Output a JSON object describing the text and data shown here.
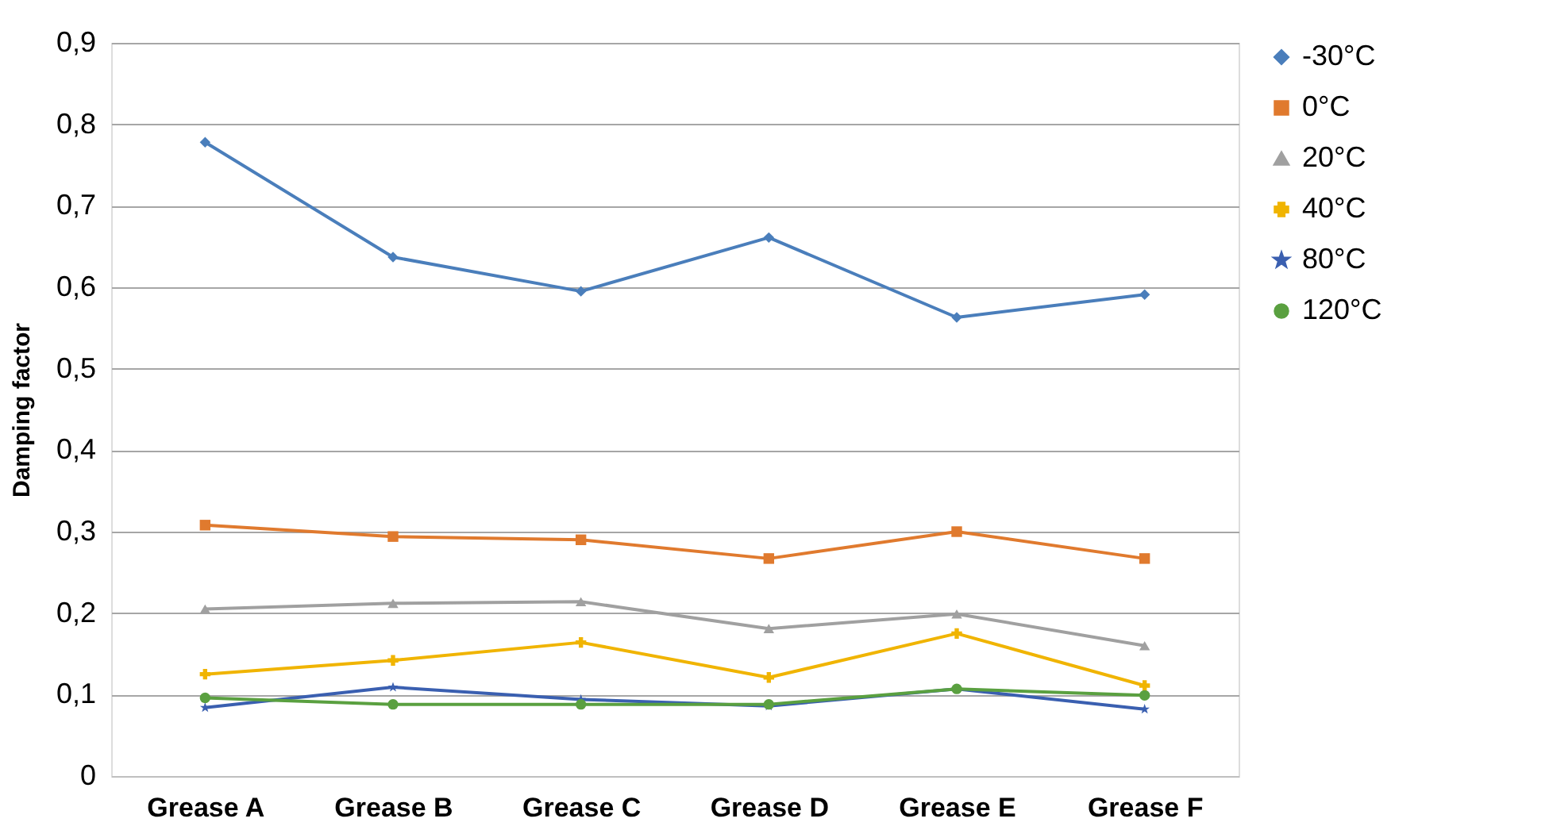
{
  "chart_data": {
    "type": "line",
    "ylabel": "Damping factor",
    "categories": [
      "Grease A",
      "Grease B",
      "Grease C",
      "Grease D",
      "Grease E",
      "Grease F"
    ],
    "series": [
      {
        "name": "-30°C",
        "color": "#4a7ebb",
        "marker": "diamond",
        "values": [
          0.778,
          0.637,
          0.595,
          0.661,
          0.563,
          0.591
        ]
      },
      {
        "name": "0°C",
        "color": "#e07a2e",
        "marker": "square",
        "values": [
          0.308,
          0.294,
          0.29,
          0.267,
          0.3,
          0.267
        ]
      },
      {
        "name": "20°C",
        "color": "#a0a0a0",
        "marker": "triangle",
        "values": [
          0.205,
          0.212,
          0.214,
          0.181,
          0.199,
          0.16
        ]
      },
      {
        "name": "40°C",
        "color": "#f0b400",
        "marker": "cross",
        "values": [
          0.125,
          0.142,
          0.164,
          0.121,
          0.175,
          0.111
        ]
      },
      {
        "name": "80°C",
        "color": "#3a5fb0",
        "marker": "star",
        "values": [
          0.084,
          0.109,
          0.094,
          0.086,
          0.107,
          0.082
        ]
      },
      {
        "name": "120°C",
        "color": "#5aa040",
        "marker": "circle",
        "values": [
          0.096,
          0.088,
          0.088,
          0.088,
          0.107,
          0.099
        ]
      }
    ],
    "ylim": [
      0,
      0.9
    ],
    "yticks": [
      {
        "value": 0,
        "label": "0"
      },
      {
        "value": 0.1,
        "label": "0,1"
      },
      {
        "value": 0.2,
        "label": "0,2"
      },
      {
        "value": 0.3,
        "label": "0,3"
      },
      {
        "value": 0.4,
        "label": "0,4"
      },
      {
        "value": 0.5,
        "label": "0,5"
      },
      {
        "value": 0.6,
        "label": "0,6"
      },
      {
        "value": 0.7,
        "label": "0,7"
      },
      {
        "value": 0.8,
        "label": "0,8"
      },
      {
        "value": 0.9,
        "label": "0,9"
      }
    ],
    "grid": "y",
    "legend": "right",
    "line_style": "solid"
  }
}
